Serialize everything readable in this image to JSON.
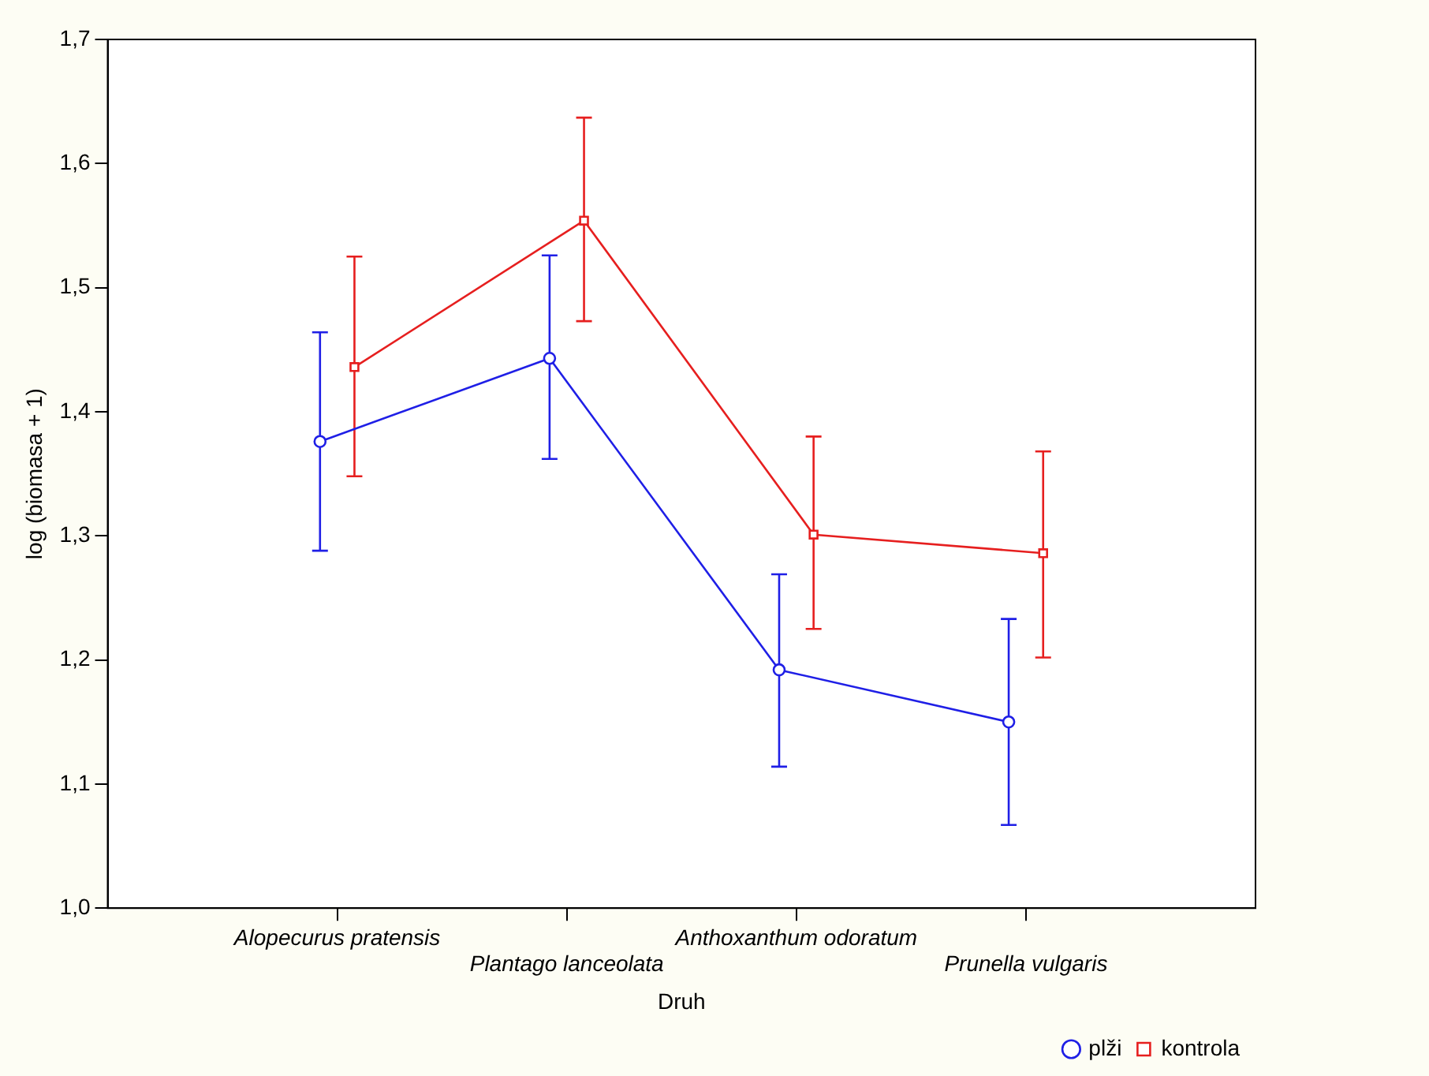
{
  "chart_data": {
    "type": "line",
    "xlabel": "Druh",
    "ylabel": "log (biomasa + 1)",
    "categories": [
      "Alopecurus pratensis",
      "Plantago lanceolata",
      "Anthoxanthum odoratum",
      "Prunella vulgaris"
    ],
    "series": [
      {
        "name": "plži",
        "color": "#1f1fe6",
        "marker": "circle",
        "values": [
          1.376,
          1.443,
          1.192,
          1.15
        ],
        "errors": [
          [
            1.288,
            1.464
          ],
          [
            1.362,
            1.526
          ],
          [
            1.114,
            1.269
          ],
          [
            1.067,
            1.233
          ]
        ]
      },
      {
        "name": "kontrola",
        "color": "#e61f1f",
        "marker": "square",
        "values": [
          1.436,
          1.554,
          1.301,
          1.286
        ],
        "errors": [
          [
            1.348,
            1.525
          ],
          [
            1.473,
            1.637
          ],
          [
            1.225,
            1.38
          ],
          [
            1.202,
            1.368
          ]
        ]
      }
    ],
    "ylim": [
      1.0,
      1.7
    ],
    "yticks": [
      {
        "value": 1.0,
        "label": "1,0"
      },
      {
        "value": 1.1,
        "label": "1,1"
      },
      {
        "value": 1.2,
        "label": "1,2"
      },
      {
        "value": 1.3,
        "label": "1,3"
      },
      {
        "value": 1.4,
        "label": "1,4"
      },
      {
        "value": 1.5,
        "label": "1,5"
      },
      {
        "value": 1.6,
        "label": "1,6"
      },
      {
        "value": 1.7,
        "label": "1,7"
      }
    ],
    "grid": false,
    "legend": "bottom right",
    "line_style": "solid"
  }
}
